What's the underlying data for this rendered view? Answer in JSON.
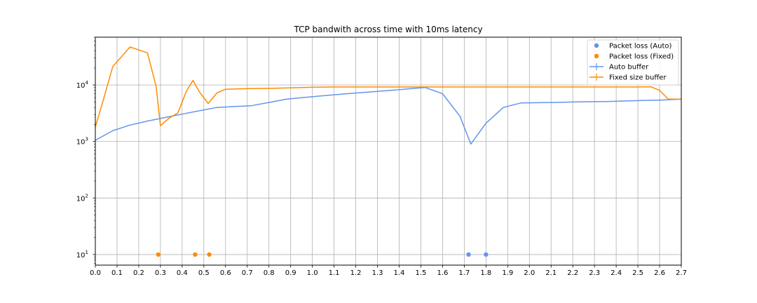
{
  "chart_data": {
    "type": "line",
    "title": "TCP bandwith across time with 10ms latency",
    "xlabel": "",
    "ylabel": "",
    "x_scale": "linear",
    "y_scale": "log",
    "xlim": [
      0.0,
      2.7
    ],
    "ylim": [
      6.5,
      70000
    ],
    "grid": true,
    "legend_position": "top-right",
    "x_ticks": [
      "0.0",
      "0.1",
      "0.2",
      "0.3",
      "0.4",
      "0.5",
      "0.6",
      "0.7",
      "0.8",
      "0.9",
      "1.0",
      "1.1",
      "1.2",
      "1.3",
      "1.4",
      "1.5",
      "1.6",
      "1.7",
      "1.8",
      "1.9",
      "2.0",
      "2.1",
      "2.2",
      "2.3",
      "2.4",
      "2.5",
      "2.6",
      "2.7"
    ],
    "y_ticks": [
      {
        "value": 10,
        "base": "10",
        "exp": "1"
      },
      {
        "value": 100,
        "base": "10",
        "exp": "2"
      },
      {
        "value": 1000,
        "base": "10",
        "exp": "3"
      },
      {
        "value": 10000,
        "base": "10",
        "exp": "4"
      }
    ],
    "series": [
      {
        "name": "Auto buffer",
        "kind": "line",
        "color": "#6495ED",
        "x": [
          0.0,
          0.08,
          0.16,
          0.24,
          0.32,
          0.4,
          0.48,
          0.56,
          0.64,
          0.72,
          0.8,
          0.88,
          0.96,
          1.04,
          1.12,
          1.2,
          1.28,
          1.36,
          1.44,
          1.52,
          1.6,
          1.68,
          1.73,
          1.8,
          1.88,
          1.96,
          2.04,
          2.12,
          2.2,
          2.28,
          2.36,
          2.44,
          2.52,
          2.6,
          2.7
        ],
        "y": [
          1050,
          1550,
          1950,
          2300,
          2650,
          3050,
          3500,
          4000,
          4150,
          4300,
          4900,
          5600,
          6000,
          6400,
          6800,
          7200,
          7600,
          8000,
          8500,
          9000,
          7000,
          2800,
          900,
          2100,
          4000,
          4800,
          4850,
          4900,
          5000,
          5050,
          5100,
          5200,
          5300,
          5400,
          5600
        ]
      },
      {
        "name": "Fixed size buffer",
        "kind": "line",
        "color": "#FF8C00",
        "x": [
          0.0,
          0.04,
          0.08,
          0.16,
          0.24,
          0.28,
          0.3,
          0.34,
          0.38,
          0.42,
          0.45,
          0.48,
          0.52,
          0.56,
          0.6,
          0.7,
          0.8,
          0.9,
          1.0,
          1.1,
          1.5,
          2.0,
          2.5,
          2.56,
          2.6,
          2.64,
          2.7
        ],
        "y": [
          1800,
          6000,
          21000,
          47000,
          37000,
          9500,
          1900,
          2600,
          3200,
          7800,
          12000,
          7500,
          4700,
          7200,
          8400,
          8600,
          8700,
          8900,
          9100,
          9200,
          9200,
          9200,
          9200,
          9300,
          8000,
          5600,
          5600
        ]
      },
      {
        "name": "Packet loss (Auto)",
        "kind": "scatter",
        "color": "#6495ED",
        "x": [
          1.72,
          1.8
        ],
        "y": [
          10,
          10
        ]
      },
      {
        "name": "Packet loss (Fixed)",
        "kind": "scatter",
        "color": "#FF8C00",
        "x": [
          0.29,
          0.46,
          0.525
        ],
        "y": [
          10,
          10,
          10
        ]
      }
    ],
    "legend": [
      {
        "label": "Packet loss (Auto)",
        "kind": "dot",
        "color": "#6495ED"
      },
      {
        "label": "Packet loss (Fixed)",
        "kind": "dot",
        "color": "#FF8C00"
      },
      {
        "label": "Auto buffer",
        "kind": "errline",
        "color": "#6495ED"
      },
      {
        "label": "Fixed size buffer",
        "kind": "errline",
        "color": "#FF8C00"
      }
    ]
  }
}
